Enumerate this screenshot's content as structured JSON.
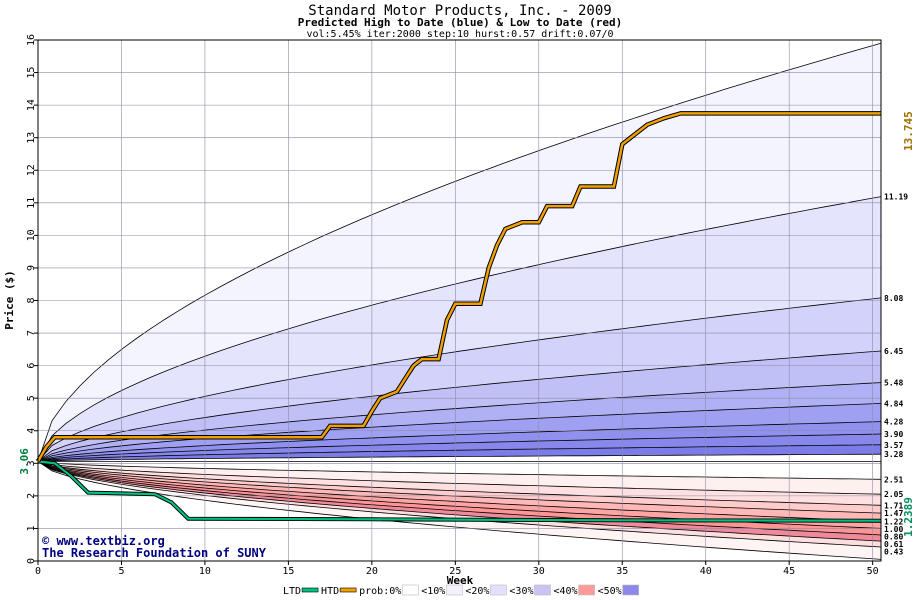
{
  "chart_data": {
    "type": "area",
    "title": "Standard Motor Products, Inc. - 2009",
    "subtitle": "Predicted High to Date (blue) &  Low to Date (red)",
    "params_line": "vol:5.45% iter:2000 step:10 hurst:0.57 drift:0.07/0",
    "xlabel": "Week",
    "ylabel": "Price ($)",
    "xlim": [
      0,
      50.5
    ],
    "ylim": [
      0,
      16
    ],
    "x_ticks": [
      0,
      5,
      10,
      15,
      20,
      25,
      30,
      35,
      40,
      45,
      50
    ],
    "y_ticks": [
      0,
      1,
      2,
      3,
      4,
      5,
      6,
      7,
      8,
      9,
      10,
      11,
      12,
      13,
      14,
      15,
      16
    ],
    "grid": true,
    "start_price": 3.06,
    "start_price_label": "3.06",
    "htd_final": 13.745,
    "htd_final_label": "13.745",
    "ltd_final": 1.2389,
    "ltd_final_label": "1.2389",
    "right_labels": {
      "high": [
        "11.19",
        "8.08",
        "6.45",
        "5.48",
        "4.84",
        "4.28",
        "3.90",
        "3.57",
        "3.28"
      ],
      "low": [
        "2.51",
        "2.05",
        "1.71",
        "1.47",
        "1.22",
        "1.00",
        "0.80",
        "0.61",
        "0.43"
      ]
    },
    "high_band_end": [
      15.9,
      11.19,
      8.08,
      6.45,
      5.48,
      4.84,
      4.28,
      3.9,
      3.57,
      3.28
    ],
    "low_band_end": [
      2.51,
      2.05,
      1.71,
      1.47,
      1.22,
      1.0,
      0.8,
      0.61,
      0.43,
      0.05
    ],
    "htd_steps": [
      [
        0,
        3.06
      ],
      [
        0.5,
        3.5
      ],
      [
        1,
        3.8
      ],
      [
        17,
        3.8
      ],
      [
        17.5,
        4.15
      ],
      [
        19.5,
        4.15
      ],
      [
        20,
        4.6
      ],
      [
        20.5,
        5.0
      ],
      [
        21.5,
        5.2
      ],
      [
        22,
        5.6
      ],
      [
        22.5,
        6.0
      ],
      [
        23,
        6.2
      ],
      [
        24,
        6.2
      ],
      [
        24.5,
        7.4
      ],
      [
        25,
        7.9
      ],
      [
        26.5,
        7.9
      ],
      [
        27,
        9.0
      ],
      [
        27.5,
        9.7
      ],
      [
        28,
        10.2
      ],
      [
        29,
        10.4
      ],
      [
        30,
        10.4
      ],
      [
        30.5,
        10.9
      ],
      [
        32,
        10.9
      ],
      [
        32.5,
        11.5
      ],
      [
        34.5,
        11.5
      ],
      [
        35,
        12.8
      ],
      [
        35.5,
        13.0
      ],
      [
        36.5,
        13.4
      ],
      [
        37.5,
        13.6
      ],
      [
        38.5,
        13.745
      ],
      [
        50.5,
        13.745
      ]
    ],
    "ltd_steps": [
      [
        0,
        3.06
      ],
      [
        1,
        3.0
      ],
      [
        2,
        2.6
      ],
      [
        3,
        2.1
      ],
      [
        7,
        2.05
      ],
      [
        8,
        1.8
      ],
      [
        9,
        1.3
      ],
      [
        20,
        1.28
      ],
      [
        35,
        1.25
      ],
      [
        50.5,
        1.2389
      ]
    ],
    "legend": [
      {
        "label": "LTD",
        "color": "#00c080",
        "kind": "line"
      },
      {
        "label": "HTD",
        "color": "#f0a000",
        "kind": "line"
      },
      {
        "label": "prob:0%",
        "color": "#ffffff",
        "kind": "box"
      },
      {
        "label": "<10%",
        "color": "#f4f0ff",
        "kind": "box"
      },
      {
        "label": "<20%",
        "color": "#e4e0fc",
        "kind": "box"
      },
      {
        "label": "<30%",
        "color": "#c8c4f4",
        "kind": "box"
      },
      {
        "label": "<40%",
        "color": "#ff9a9a",
        "kind": "box"
      },
      {
        "label": "<50%",
        "color": "#8c88ec",
        "kind": "box"
      }
    ],
    "high_colors": [
      "#f4f4ff",
      "#e4e4fc",
      "#d2d2fa",
      "#c0c0f6",
      "#b0b0f4",
      "#a0a0f2",
      "#9090ee",
      "#8888ec",
      "#7c7ce8"
    ],
    "low_colors": [
      "#fff0f0",
      "#ffe0e0",
      "#ffcccc",
      "#ffb8b8",
      "#ffa4a4",
      "#ff9494",
      "#f08a9a",
      "#fcdede",
      "#fff4f4"
    ],
    "htd_color": "#f0a000",
    "ltd_color": "#00c080"
  },
  "watermark": {
    "line1": "© www.textbiz.org",
    "line2": "The Research Foundation of SUNY"
  }
}
